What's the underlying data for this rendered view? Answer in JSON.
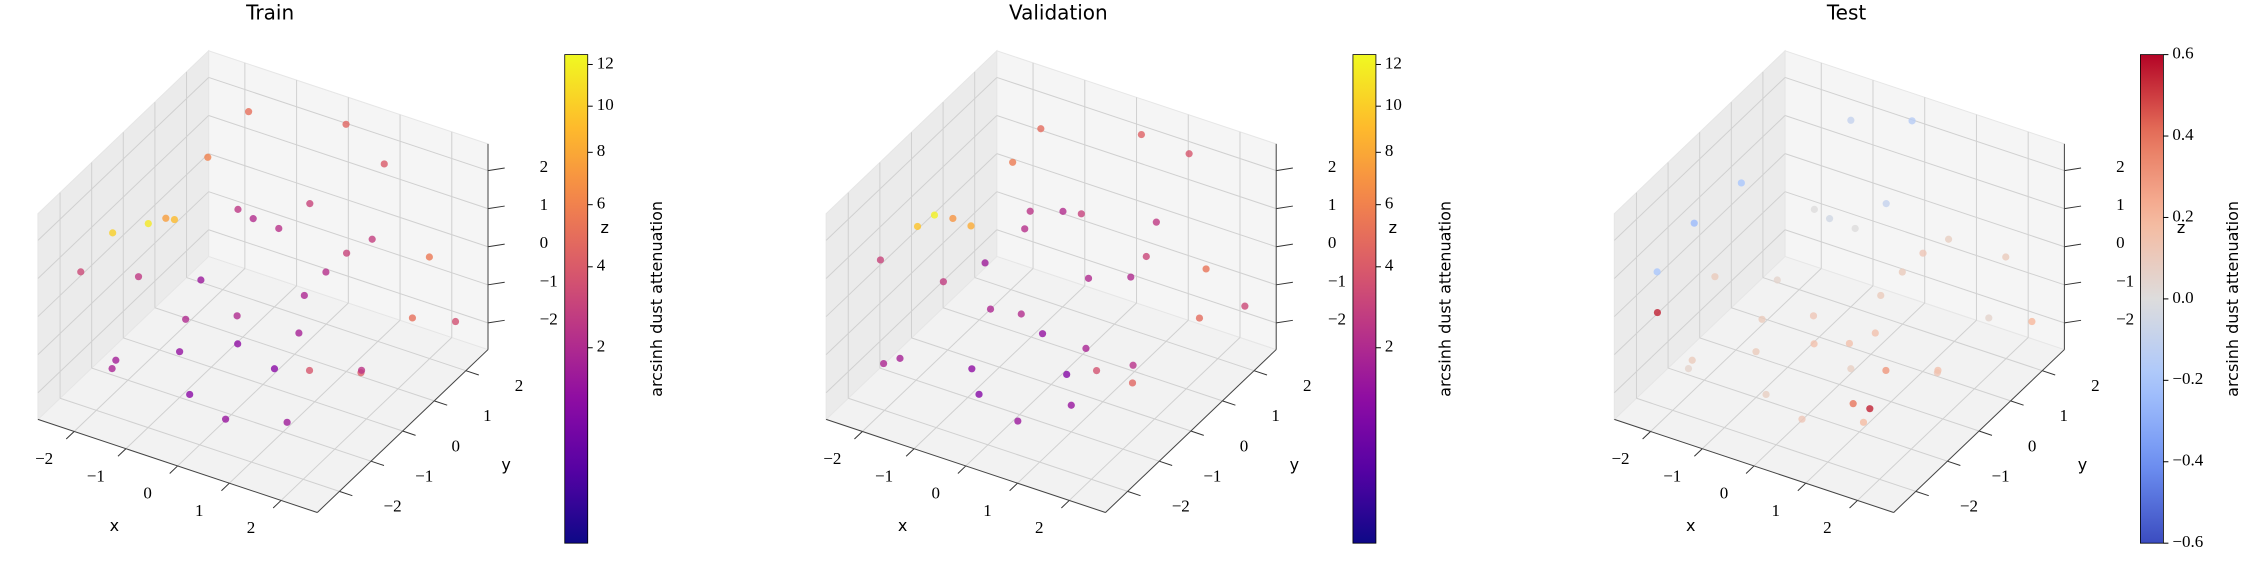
{
  "chart_data": [
    {
      "type": "scatter3d",
      "title": "Train",
      "xlabel": "x",
      "ylabel": "y",
      "zlabel": "z",
      "xlim": [
        -2.7,
        2.7
      ],
      "ylim": [
        -2.7,
        2.7
      ],
      "zlim": [
        -2.7,
        2.7
      ],
      "xticks": [
        {
          "value": -2,
          "label": "−2"
        },
        {
          "value": -1,
          "label": "−1"
        },
        0,
        1,
        2
      ],
      "yticks": [
        {
          "value": -2,
          "label": "−2"
        },
        {
          "value": -1,
          "label": "−1"
        },
        0,
        1,
        2
      ],
      "zticks": [
        {
          "value": -2,
          "label": "−2"
        },
        {
          "value": -1,
          "label": "−1"
        },
        0,
        1,
        2
      ],
      "x": [
        -2.4,
        -2.6,
        -2.2,
        -2.0,
        -1.8,
        -1.5,
        0.2,
        1.0,
        2.3,
        2.4,
        2.2,
        2.5,
        -1.0,
        -0.5,
        0.0,
        0.5,
        1.2,
        -1.5,
        -2.0,
        0.8,
        0.0,
        -0.8,
        1.5,
        1.8,
        -0.3,
        -1.2,
        0.3,
        1.0,
        -2.3,
        -1.0,
        0.6,
        2.0,
        -0.5,
        1.6,
        -1.8,
        0.1
      ],
      "y": [
        0.3,
        -0.5,
        0.8,
        0.2,
        1.2,
        2.0,
        2.3,
        2.2,
        1.5,
        0.8,
        -0.5,
        2.0,
        -1.0,
        -1.5,
        -0.8,
        -2.0,
        -1.2,
        -2.2,
        -1.5,
        0.0,
        0.5,
        1.0,
        1.0,
        -0.3,
        -0.3,
        0.0,
        1.5,
        -0.5,
        -2.0,
        -2.3,
        -1.8,
        -1.8,
        2.3,
        0.5,
        0.5,
        0.2
      ],
      "z": [
        0.2,
        0.5,
        0.0,
        0.6,
        1.5,
        2.2,
        2.4,
        1.8,
        0.5,
        -0.5,
        -1.0,
        -1.5,
        -1.5,
        -2.0,
        -1.0,
        -1.8,
        -2.2,
        -1.0,
        -2.0,
        0.0,
        1.0,
        0.5,
        1.0,
        1.8,
        2.0,
        -0.5,
        -0.8,
        -0.5,
        0.8,
        1.5,
        0.8,
        0.0,
        0.0,
        -2.0,
        -2.2,
        -2.4
      ],
      "values": [
        11.5,
        10.2,
        9.0,
        7.5,
        6.0,
        5.0,
        4.5,
        4.0,
        5.5,
        5.0,
        4.2,
        3.5,
        1.2,
        1.0,
        1.1,
        1.3,
        1.5,
        1.6,
        1.8,
        1.9,
        2.3,
        2.1,
        2.8,
        3.0,
        2.5,
        1.4,
        2.2,
        1.7,
        3.2,
        2.6,
        2.0,
        3.8,
        3.0,
        2.4,
        2.0,
        1.0
      ],
      "colorbar": {
        "label": "arcsinh dust attenuation",
        "colormap": "plasma",
        "scale": "sqrt",
        "lim": [
          0,
          12.5
        ],
        "ticks": [
          2,
          4,
          6,
          8,
          10,
          12
        ]
      }
    },
    {
      "type": "scatter3d",
      "title": "Validation",
      "xlabel": "x",
      "ylabel": "y",
      "zlabel": "z",
      "xlim": [
        -2.7,
        2.7
      ],
      "ylim": [
        -2.7,
        2.7
      ],
      "zlim": [
        -2.7,
        2.7
      ],
      "xticks": [
        {
          "value": -2,
          "label": "−2"
        },
        {
          "value": -1,
          "label": "−1"
        },
        0,
        1,
        2
      ],
      "yticks": [
        {
          "value": -2,
          "label": "−2"
        },
        {
          "value": -1,
          "label": "−1"
        },
        0,
        1,
        2
      ],
      "zticks": [
        {
          "value": -2,
          "label": "−2"
        },
        {
          "value": -1,
          "label": "−1"
        },
        0,
        1,
        2
      ],
      "x": [
        -2.5,
        -2.4,
        -2.1,
        -1.9,
        -1.6,
        -1.3,
        0.4,
        1.2,
        2.2,
        2.5,
        2.0,
        2.4,
        -0.8,
        -0.6,
        0.2,
        0.7,
        1.0,
        -1.7,
        -2.2,
        0.6,
        -0.2,
        -1.0,
        1.3,
        1.9,
        -0.1,
        -1.4,
        0.5,
        1.1,
        -2.2,
        -0.8,
        0.4,
        2.1,
        -0.7,
        1.4,
        -1.6,
        0.3
      ],
      "y": [
        0.4,
        -0.3,
        0.9,
        0.0,
        1.4,
        1.8,
        2.2,
        2.4,
        1.3,
        0.6,
        -0.7,
        2.2,
        -1.2,
        -1.3,
        -0.6,
        -2.2,
        -1.0,
        -2.0,
        -1.7,
        0.2,
        0.7,
        0.8,
        1.2,
        -0.1,
        -0.5,
        0.2,
        1.7,
        -0.7,
        -1.8,
        -2.1,
        -1.6,
        -2.0,
        2.1,
        0.3,
        0.7,
        0.0
      ],
      "z": [
        0.3,
        0.6,
        -0.2,
        0.8,
        1.3,
        2.0,
        2.3,
        2.0,
        0.3,
        -0.3,
        -1.2,
        -1.3,
        -1.7,
        -2.2,
        -0.8,
        -1.6,
        -2.0,
        -1.2,
        -1.8,
        0.2,
        1.2,
        0.3,
        1.2,
        1.6,
        2.2,
        -0.3,
        -1.0,
        -0.7,
        1.0,
        1.3,
        0.6,
        0.2,
        -0.2,
        -1.8,
        -2.0,
        -2.3
      ],
      "values": [
        12.0,
        9.5,
        8.2,
        7.0,
        5.6,
        4.8,
        4.3,
        3.8,
        5.2,
        4.8,
        4.5,
        3.2,
        1.1,
        0.9,
        1.2,
        1.4,
        1.3,
        1.7,
        1.9,
        2.0,
        2.1,
        2.2,
        2.6,
        3.1,
        2.4,
        1.5,
        2.0,
        1.8,
        3.0,
        2.7,
        2.1,
        3.6,
        2.9,
        2.3,
        1.9,
        0.9
      ],
      "colorbar": {
        "label": "arcsinh dust attenuation",
        "colormap": "plasma",
        "scale": "sqrt",
        "lim": [
          0,
          12.5
        ],
        "ticks": [
          2,
          4,
          6,
          8,
          10,
          12
        ]
      }
    },
    {
      "type": "scatter3d",
      "title": "Test",
      "xlabel": "x",
      "ylabel": "y",
      "zlabel": "z",
      "xlim": [
        -2.7,
        2.7
      ],
      "ylim": [
        -2.7,
        2.7
      ],
      "zlim": [
        -2.7,
        2.7
      ],
      "xticks": [
        {
          "value": -2,
          "label": "−2"
        },
        {
          "value": -1,
          "label": "−1"
        },
        0,
        1,
        2
      ],
      "yticks": [
        {
          "value": -2,
          "label": "−2"
        },
        {
          "value": -1,
          "label": "−1"
        },
        0,
        1,
        2
      ],
      "zticks": [
        {
          "value": -2,
          "label": "−2"
        },
        {
          "value": -1,
          "label": "−1"
        },
        0,
        1,
        2
      ],
      "x": [
        -2.5,
        -2.2,
        -2.6,
        0.0,
        -1.0,
        1.2,
        1.0,
        0.5,
        2.3,
        2.4,
        2.2,
        2.5,
        -1.0,
        -0.5,
        0.0,
        0.5,
        1.2,
        -1.5,
        -2.0,
        0.8,
        0.0,
        -0.8,
        1.5,
        1.8,
        -0.3,
        -1.2,
        0.3,
        1.0,
        -2.3,
        -1.0,
        0.6,
        2.0,
        -0.5,
        1.6,
        -1.8,
        0.1
      ],
      "y": [
        -0.5,
        0.5,
        -1.5,
        2.3,
        2.0,
        -1.0,
        -1.2,
        -0.5,
        1.5,
        0.8,
        -0.5,
        2.0,
        -1.0,
        -1.5,
        -0.8,
        -2.0,
        -1.2,
        -2.2,
        -1.5,
        0.0,
        0.5,
        1.0,
        1.0,
        -0.3,
        -0.3,
        0.0,
        1.5,
        -0.5,
        -2.0,
        -2.3,
        -1.8,
        -1.8,
        2.3,
        0.5,
        0.5,
        0.2
      ],
      "z": [
        0.8,
        1.2,
        -0.8,
        2.4,
        2.2,
        -2.0,
        -1.8,
        -1.0,
        0.5,
        -0.5,
        -1.0,
        -1.5,
        -1.5,
        -2.0,
        -1.0,
        -1.8,
        -2.2,
        -1.0,
        -2.0,
        0.0,
        1.0,
        0.5,
        1.0,
        1.8,
        2.0,
        -0.5,
        -0.8,
        -0.5,
        0.8,
        1.5,
        0.8,
        0.0,
        0.0,
        -2.0,
        -2.2,
        -2.4
      ],
      "values": [
        -0.25,
        -0.2,
        0.55,
        -0.15,
        -0.1,
        0.55,
        0.4,
        0.15,
        0.1,
        0.05,
        0.12,
        0.2,
        0.1,
        0.08,
        0.15,
        0.12,
        0.18,
        0.1,
        0.05,
        0.1,
        0.0,
        -0.05,
        0.08,
        0.12,
        0.0,
        0.05,
        0.1,
        0.15,
        -0.2,
        0.1,
        0.12,
        0.3,
        -0.1,
        0.15,
        0.1,
        0.08
      ],
      "colorbar": {
        "label": "arcsinh dust attenuation",
        "colormap": "coolwarm",
        "scale": "linear",
        "lim": [
          -0.6,
          0.6
        ],
        "ticks": [
          {
            "value": -0.6,
            "label": "−0.6"
          },
          {
            "value": -0.4,
            "label": "−0.4"
          },
          {
            "value": -0.2,
            "label": "−0.2"
          },
          {
            "value": 0,
            "label": "0.0"
          },
          0.2,
          0.4,
          0.6
        ]
      }
    }
  ]
}
